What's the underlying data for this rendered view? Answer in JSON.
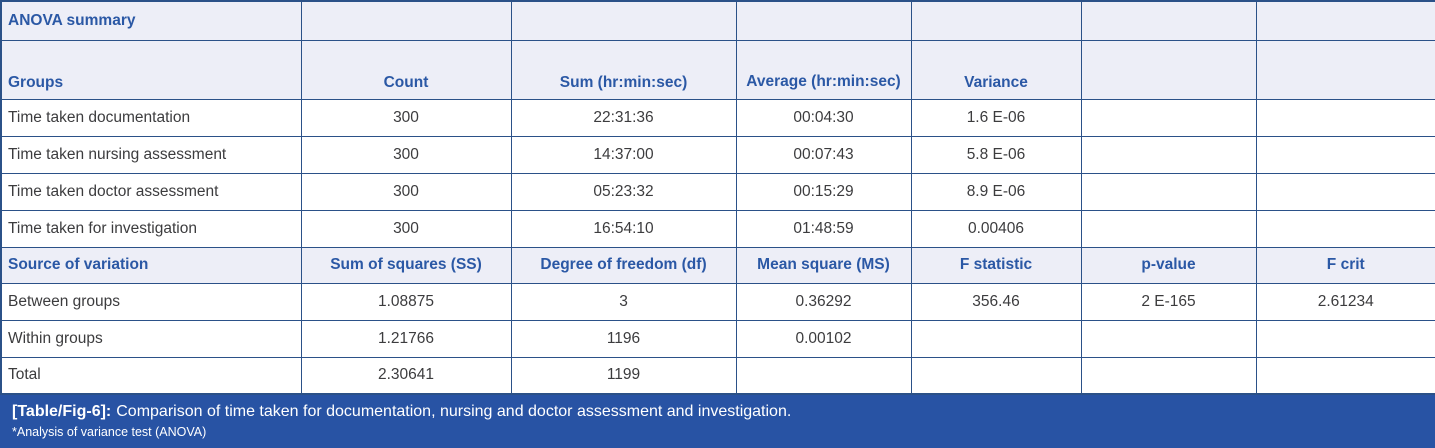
{
  "colors": {
    "header_bg": "#edeef7",
    "border": "#2b5188",
    "header_text": "#2b58a5",
    "body_text": "#3c3c3e",
    "caption_bg": "#2853a4",
    "caption_text": "#ffffff"
  },
  "table": {
    "title": "ANOVA summary",
    "groups_header": {
      "groups": "Groups",
      "count": "Count",
      "sum": "Sum (hr:min:sec)",
      "average": "Average\n(hr:min:sec)",
      "variance": "Variance"
    },
    "group_rows": [
      {
        "label": "Time taken documentation",
        "count": "300",
        "sum": "22:31:36",
        "average": "00:04:30",
        "variance": "1.6 E-06"
      },
      {
        "label": "Time taken nursing assessment",
        "count": "300",
        "sum": "14:37:00",
        "average": "00:07:43",
        "variance": "5.8 E-06"
      },
      {
        "label": "Time taken doctor assessment",
        "count": "300",
        "sum": "05:23:32",
        "average": "00:15:29",
        "variance": "8.9 E-06"
      },
      {
        "label": "Time taken for investigation",
        "count": "300",
        "sum": "16:54:10",
        "average": "01:48:59",
        "variance": "0.00406"
      }
    ],
    "source_header": {
      "source": "Source of variation",
      "ss": "Sum of squares (SS)",
      "df": "Degree of freedom (df)",
      "ms": "Mean square (MS)",
      "f": "F statistic",
      "p": "p-value",
      "fcrit": "F crit"
    },
    "source_rows": [
      {
        "label": "Between groups",
        "ss": "1.08875",
        "df": "3",
        "ms": "0.36292",
        "f": "356.46",
        "p": "2 E-165",
        "fcrit": "2.61234"
      },
      {
        "label": "Within groups",
        "ss": "1.21766",
        "df": "1196",
        "ms": "0.00102",
        "f": "",
        "p": "",
        "fcrit": ""
      },
      {
        "label": "Total",
        "ss": "2.30641",
        "df": "1199",
        "ms": "",
        "f": "",
        "p": "",
        "fcrit": ""
      }
    ]
  },
  "caption": {
    "tag": "[Table/Fig-6]:",
    "text": "Comparison of time taken for documentation, nursing and doctor assessment and investigation.",
    "footnote": "*Analysis of variance test (ANOVA)"
  }
}
